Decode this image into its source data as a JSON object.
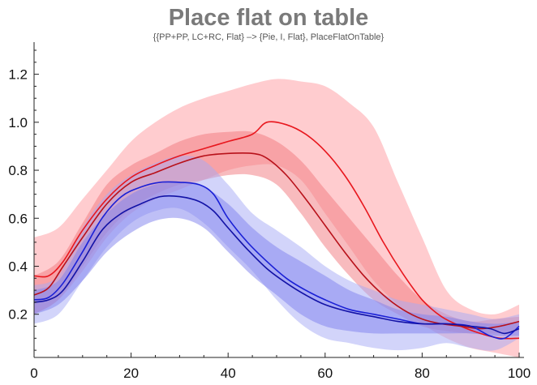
{
  "chart_data": {
    "type": "line",
    "title": "Place flat on table",
    "subtitle": "{{PP+PP, LC+RC, Flat} –> {Pie, I, Flat}, PlaceFlatOnTable}",
    "xlabel": "",
    "ylabel": "",
    "xlim": [
      0,
      100
    ],
    "ylim": [
      0.02,
      1.3
    ],
    "x_ticks": [
      "0",
      "20",
      "40",
      "60",
      "80",
      "100"
    ],
    "y_ticks": [
      "0.2",
      "0.4",
      "0.6",
      "0.8",
      "1.0",
      "1.2"
    ],
    "grid": false,
    "series": [
      {
        "color": "#e8171e",
        "band_color": "#ff9aa0",
        "points": [
          [
            0,
            0.36
          ],
          [
            3,
            0.36
          ],
          [
            6,
            0.42
          ],
          [
            10,
            0.55
          ],
          [
            15,
            0.68
          ],
          [
            20,
            0.77
          ],
          [
            25,
            0.82
          ],
          [
            30,
            0.86
          ],
          [
            35,
            0.89
          ],
          [
            40,
            0.92
          ],
          [
            45,
            0.95
          ],
          [
            48,
            1.0
          ],
          [
            52,
            0.99
          ],
          [
            56,
            0.95
          ],
          [
            60,
            0.88
          ],
          [
            64,
            0.78
          ],
          [
            68,
            0.65
          ],
          [
            72,
            0.5
          ],
          [
            76,
            0.37
          ],
          [
            80,
            0.26
          ],
          [
            84,
            0.19
          ],
          [
            88,
            0.15
          ],
          [
            92,
            0.12
          ],
          [
            96,
            0.1
          ],
          [
            100,
            0.1
          ]
        ],
        "upper": [
          [
            0,
            0.52
          ],
          [
            5,
            0.56
          ],
          [
            10,
            0.68
          ],
          [
            15,
            0.8
          ],
          [
            20,
            0.92
          ],
          [
            25,
            1.0
          ],
          [
            30,
            1.06
          ],
          [
            35,
            1.1
          ],
          [
            40,
            1.13
          ],
          [
            45,
            1.16
          ],
          [
            50,
            1.18
          ],
          [
            55,
            1.17
          ],
          [
            60,
            1.15
          ],
          [
            65,
            1.08
          ],
          [
            70,
            0.98
          ],
          [
            75,
            0.75
          ],
          [
            80,
            0.52
          ],
          [
            85,
            0.3
          ],
          [
            90,
            0.22
          ],
          [
            95,
            0.2
          ],
          [
            100,
            0.24
          ]
        ],
        "lower": [
          [
            0,
            0.2
          ],
          [
            5,
            0.26
          ],
          [
            10,
            0.38
          ],
          [
            15,
            0.52
          ],
          [
            20,
            0.62
          ],
          [
            25,
            0.68
          ],
          [
            30,
            0.72
          ],
          [
            35,
            0.76
          ],
          [
            40,
            0.8
          ],
          [
            45,
            0.82
          ],
          [
            50,
            0.82
          ],
          [
            55,
            0.76
          ],
          [
            60,
            0.62
          ],
          [
            65,
            0.48
          ],
          [
            70,
            0.34
          ],
          [
            75,
            0.24
          ],
          [
            80,
            0.16
          ],
          [
            85,
            0.1
          ],
          [
            90,
            0.06
          ],
          [
            95,
            0.04
          ],
          [
            100,
            0.02
          ]
        ]
      },
      {
        "color": "#b8111a",
        "band_color": "#f2787e",
        "points": [
          [
            0,
            0.28
          ],
          [
            3,
            0.31
          ],
          [
            6,
            0.4
          ],
          [
            10,
            0.52
          ],
          [
            15,
            0.66
          ],
          [
            20,
            0.75
          ],
          [
            25,
            0.79
          ],
          [
            30,
            0.83
          ],
          [
            35,
            0.86
          ],
          [
            40,
            0.87
          ],
          [
            45,
            0.87
          ],
          [
            48,
            0.85
          ],
          [
            52,
            0.78
          ],
          [
            56,
            0.68
          ],
          [
            60,
            0.57
          ],
          [
            64,
            0.46
          ],
          [
            68,
            0.36
          ],
          [
            72,
            0.28
          ],
          [
            76,
            0.22
          ],
          [
            80,
            0.18
          ],
          [
            84,
            0.16
          ],
          [
            88,
            0.15
          ],
          [
            92,
            0.14
          ],
          [
            96,
            0.15
          ],
          [
            100,
            0.17
          ]
        ],
        "upper": [
          [
            0,
            0.36
          ],
          [
            5,
            0.42
          ],
          [
            10,
            0.58
          ],
          [
            15,
            0.74
          ],
          [
            20,
            0.82
          ],
          [
            25,
            0.87
          ],
          [
            30,
            0.92
          ],
          [
            35,
            0.95
          ],
          [
            40,
            0.96
          ],
          [
            45,
            0.96
          ],
          [
            50,
            0.92
          ],
          [
            55,
            0.84
          ],
          [
            60,
            0.72
          ],
          [
            65,
            0.6
          ],
          [
            70,
            0.48
          ],
          [
            75,
            0.36
          ],
          [
            80,
            0.26
          ],
          [
            85,
            0.2
          ],
          [
            90,
            0.17
          ],
          [
            95,
            0.18
          ],
          [
            100,
            0.19
          ]
        ],
        "lower": [
          [
            0,
            0.2
          ],
          [
            5,
            0.26
          ],
          [
            10,
            0.4
          ],
          [
            15,
            0.54
          ],
          [
            20,
            0.64
          ],
          [
            25,
            0.7
          ],
          [
            30,
            0.74
          ],
          [
            35,
            0.76
          ],
          [
            40,
            0.78
          ],
          [
            45,
            0.78
          ],
          [
            50,
            0.74
          ],
          [
            55,
            0.62
          ],
          [
            60,
            0.48
          ],
          [
            65,
            0.36
          ],
          [
            70,
            0.26
          ],
          [
            75,
            0.2
          ],
          [
            80,
            0.15
          ],
          [
            85,
            0.13
          ],
          [
            90,
            0.12
          ],
          [
            95,
            0.12
          ],
          [
            100,
            0.13
          ]
        ]
      },
      {
        "color": "#1a20d6",
        "band_color": "#a6aaf5",
        "points": [
          [
            0,
            0.26
          ],
          [
            3,
            0.27
          ],
          [
            6,
            0.33
          ],
          [
            10,
            0.46
          ],
          [
            14,
            0.6
          ],
          [
            18,
            0.69
          ],
          [
            22,
            0.73
          ],
          [
            26,
            0.75
          ],
          [
            30,
            0.75
          ],
          [
            34,
            0.74
          ],
          [
            37,
            0.7
          ],
          [
            40,
            0.6
          ],
          [
            44,
            0.5
          ],
          [
            48,
            0.42
          ],
          [
            52,
            0.35
          ],
          [
            56,
            0.3
          ],
          [
            60,
            0.26
          ],
          [
            65,
            0.22
          ],
          [
            70,
            0.2
          ],
          [
            75,
            0.18
          ],
          [
            80,
            0.16
          ],
          [
            85,
            0.16
          ],
          [
            90,
            0.15
          ],
          [
            94,
            0.11
          ],
          [
            97,
            0.1
          ],
          [
            100,
            0.15
          ]
        ],
        "upper": [
          [
            0,
            0.32
          ],
          [
            5,
            0.36
          ],
          [
            10,
            0.56
          ],
          [
            15,
            0.7
          ],
          [
            20,
            0.78
          ],
          [
            25,
            0.83
          ],
          [
            30,
            0.86
          ],
          [
            35,
            0.84
          ],
          [
            40,
            0.74
          ],
          [
            45,
            0.62
          ],
          [
            50,
            0.55
          ],
          [
            55,
            0.48
          ],
          [
            60,
            0.4
          ],
          [
            65,
            0.34
          ],
          [
            70,
            0.3
          ],
          [
            75,
            0.26
          ],
          [
            80,
            0.24
          ],
          [
            85,
            0.22
          ],
          [
            90,
            0.2
          ],
          [
            95,
            0.18
          ],
          [
            100,
            0.2
          ]
        ],
        "lower": [
          [
            0,
            0.16
          ],
          [
            5,
            0.2
          ],
          [
            10,
            0.34
          ],
          [
            15,
            0.48
          ],
          [
            20,
            0.58
          ],
          [
            25,
            0.63
          ],
          [
            30,
            0.64
          ],
          [
            35,
            0.58
          ],
          [
            40,
            0.48
          ],
          [
            45,
            0.38
          ],
          [
            50,
            0.26
          ],
          [
            55,
            0.16
          ],
          [
            60,
            0.1
          ],
          [
            65,
            0.08
          ],
          [
            70,
            0.06
          ],
          [
            75,
            0.05
          ],
          [
            80,
            0.06
          ],
          [
            85,
            0.08
          ],
          [
            90,
            0.06
          ],
          [
            95,
            0.05
          ],
          [
            100,
            0.1
          ]
        ]
      },
      {
        "color": "#1212a6",
        "band_color": "#7d80ee",
        "points": [
          [
            0,
            0.25
          ],
          [
            3,
            0.26
          ],
          [
            6,
            0.3
          ],
          [
            10,
            0.42
          ],
          [
            14,
            0.55
          ],
          [
            18,
            0.62
          ],
          [
            22,
            0.66
          ],
          [
            26,
            0.69
          ],
          [
            30,
            0.69
          ],
          [
            34,
            0.67
          ],
          [
            37,
            0.63
          ],
          [
            40,
            0.56
          ],
          [
            44,
            0.47
          ],
          [
            48,
            0.39
          ],
          [
            52,
            0.33
          ],
          [
            56,
            0.28
          ],
          [
            60,
            0.24
          ],
          [
            65,
            0.21
          ],
          [
            70,
            0.19
          ],
          [
            75,
            0.17
          ],
          [
            80,
            0.16
          ],
          [
            85,
            0.16
          ],
          [
            90,
            0.15
          ],
          [
            94,
            0.14
          ],
          [
            97,
            0.12
          ],
          [
            100,
            0.14
          ]
        ],
        "upper": [
          [
            0,
            0.3
          ],
          [
            5,
            0.34
          ],
          [
            10,
            0.5
          ],
          [
            15,
            0.62
          ],
          [
            20,
            0.7
          ],
          [
            25,
            0.74
          ],
          [
            30,
            0.75
          ],
          [
            35,
            0.73
          ],
          [
            40,
            0.66
          ],
          [
            45,
            0.56
          ],
          [
            50,
            0.48
          ],
          [
            55,
            0.42
          ],
          [
            60,
            0.36
          ],
          [
            65,
            0.3
          ],
          [
            70,
            0.26
          ],
          [
            75,
            0.22
          ],
          [
            80,
            0.2
          ],
          [
            85,
            0.19
          ],
          [
            90,
            0.17
          ],
          [
            95,
            0.16
          ],
          [
            100,
            0.17
          ]
        ],
        "lower": [
          [
            0,
            0.2
          ],
          [
            5,
            0.24
          ],
          [
            10,
            0.34
          ],
          [
            15,
            0.46
          ],
          [
            20,
            0.54
          ],
          [
            25,
            0.59
          ],
          [
            30,
            0.6
          ],
          [
            35,
            0.56
          ],
          [
            40,
            0.46
          ],
          [
            45,
            0.36
          ],
          [
            50,
            0.28
          ],
          [
            55,
            0.2
          ],
          [
            60,
            0.15
          ],
          [
            65,
            0.13
          ],
          [
            70,
            0.12
          ],
          [
            75,
            0.12
          ],
          [
            80,
            0.12
          ],
          [
            85,
            0.12
          ],
          [
            90,
            0.12
          ],
          [
            95,
            0.11
          ],
          [
            100,
            0.11
          ]
        ]
      }
    ]
  }
}
